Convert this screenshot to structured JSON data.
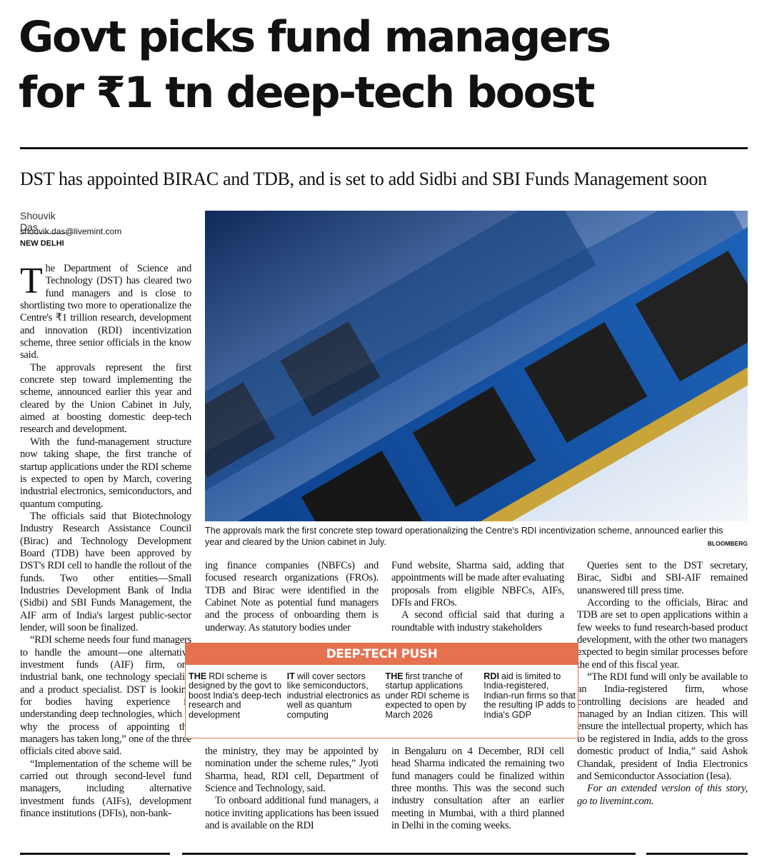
{
  "headline": [
    "Govt picks fund managers",
    "for ₹1 tn deep-tech boost"
  ],
  "subhead": "DST has appointed BIRAC and TDB, and is set to add Sidbi and SBI Funds Management soon",
  "byline": {
    "author": "Shouvik Das",
    "email": "shouvik.das@livemint.com",
    "dateline": "NEW DELHI"
  },
  "image": {
    "caption": "The approvals mark the first concrete step toward operationalizing the Centre's RDI incentivization scheme, announced earlier this year and cleared by the Union cabinet in July.",
    "credit": "BLOOMBERG"
  },
  "columns": [
    [
      "The Department of Science and Technology (DST) has cleared two fund managers and is close to shortlisting two more to operationalize the Centre's ₹1 trillion research, development and innovation (RDI) incentivization scheme, three senior officials in the know said.",
      "The approvals represent the first concrete step toward implementing the scheme, announced earlier this year and cleared by the Union Cabinet in July, aimed at boosting domestic deep-tech research and development.",
      "With the fund-management structure now taking shape, the first tranche of startup applications under the RDI scheme is expected to open by March, covering industrial electronics, semiconductors, and quantum computing.",
      "The officials said that Biotechnology Industry Research Assistance Council (Birac) and Technology Development Board (TDB) have been approved by DST's RDI cell to handle the rollout of the funds. Two other entities—Small Industries Development Bank of India (Sidbi) and SBI Funds Management, the AIF arm of India's largest public-sector lender, will soon be finalized.",
      "“RDI scheme needs four fund managers to handle the amount—one alternative investment funds (AIF) firm, one industrial bank, one technology specialist and a product specialist. DST is looking for bodies having experience in understanding deep technologies, which is why the process of appointing the managers has taken long,” one of the three officials cited above said.",
      "“Implementation of the scheme will be carried out through second-level fund managers, including alternative investment funds (AIFs), development finance institutions (DFIs), non-bank-"
    ],
    [
      "ing finance companies (NBFCs) and focused research organizations (FROs). TDB and Birac were identified in the Cabinet Note as potential fund managers and the process of onboarding them is underway. As statutory bodies under"
    ],
    [
      "the ministry, they may be appointed by nomination under the scheme rules,” Jyoti Sharma, head, RDI cell, Department of Science and Technology, said.",
      "To onboard additional fund managers, a notice inviting applications has been issued and is available on the RDI"
    ],
    [
      "Fund website, Sharma said, adding that appointments will be made after evaluating proposals from eligible NBFCs, AIFs, DFIs and FROs.",
      "A second official said that during a roundtable with industry stakeholders"
    ],
    [
      "in Bengaluru on 4 December, RDI cell head Sharma indicated the remaining two fund managers could be finalized within three months. This was the second such industry consultation after an earlier meeting in Mumbai, with a third planned in Delhi in the coming weeks."
    ],
    [
      "Queries sent to the DST secretary, Birac, Sidbi and SBI-AIF remained unanswered till press time.",
      "According to the officials, Birac and TDB are set to open applications within a few weeks to fund research-based product development, with the other two managers expected to begin similar processes before the end of this fiscal year.",
      "“The RDI fund will only be available to an India-registered firm, whose controlling decisions are headed and managed by an Indian citizen. This will ensure the intellectual property, which has to be registered in India, adds to the gross domestic product of India,” said Ashok Chandak, president of India Electronics and Semiconductor Association (Iesa).",
      "For an extended version of this story, go to livemint.com."
    ]
  ],
  "box": {
    "title": "DEEP-TECH PUSH",
    "items": [
      {
        "lead": "THE",
        "text": "RDI scheme is designed by the govt to boost India's deep-tech research and development"
      },
      {
        "lead": "IT",
        "text": "will cover sectors like semiconductors, industrial electronics as well as quantum computing"
      },
      {
        "lead": "THE",
        "text": "first tranche of startup applications under RDI scheme is expected to open by March 2026"
      },
      {
        "lead": "RDI",
        "text": "aid is limited to India-registered, Indian-run firms so that the resulting IP adds to India's GDP"
      }
    ]
  }
}
